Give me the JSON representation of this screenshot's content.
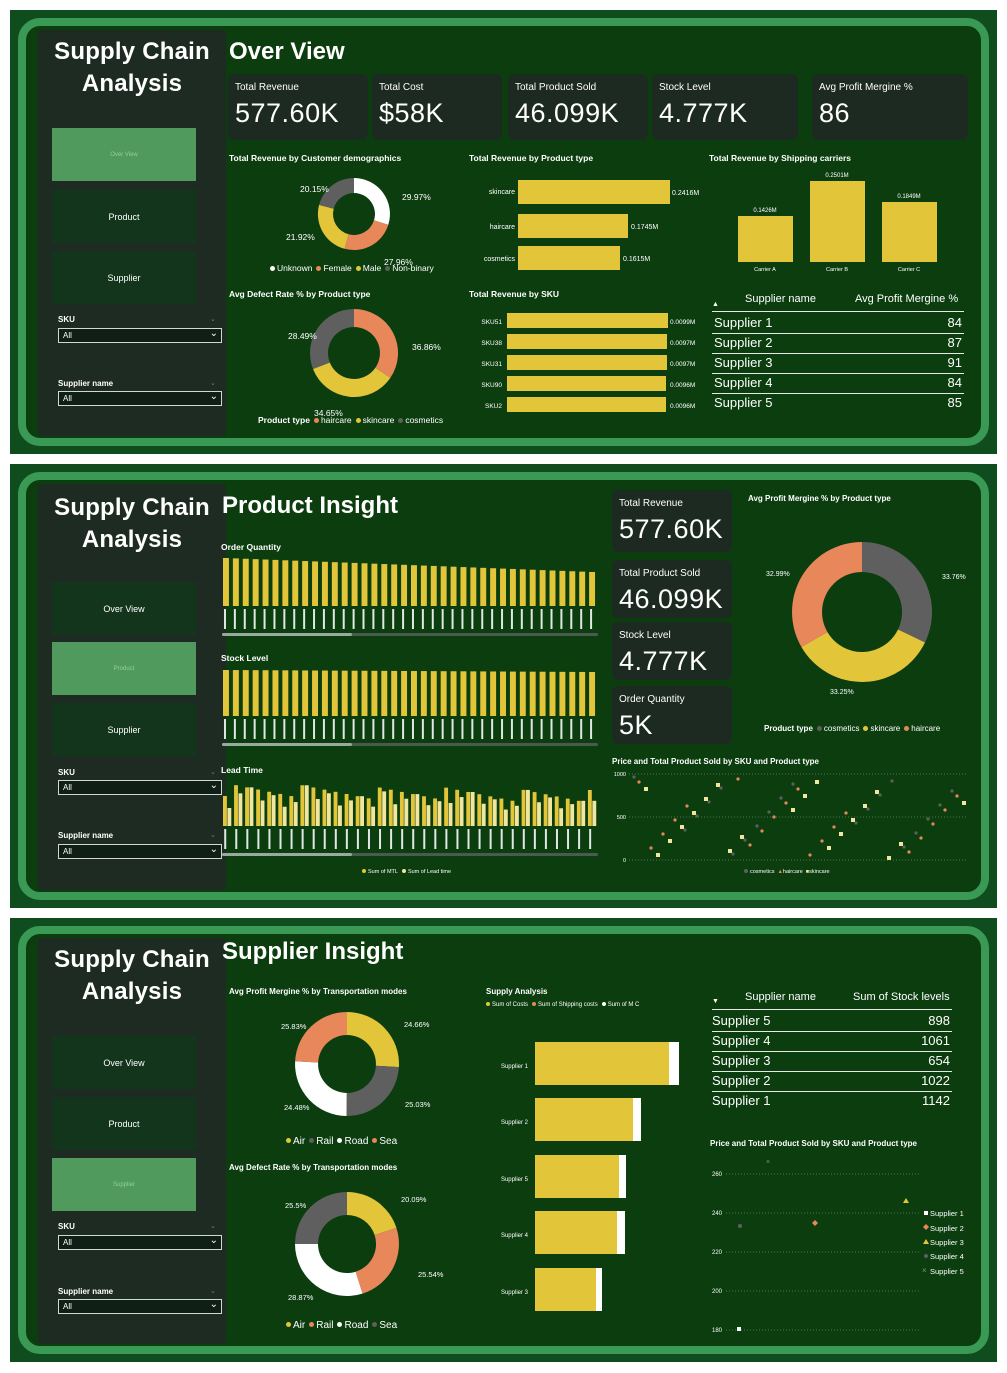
{
  "brand": {
    "line1": "Supply Chain",
    "line2": "Analysis"
  },
  "nav": {
    "overview": "Over View",
    "product": "Product",
    "supplier": "Supplier"
  },
  "slicers": {
    "sku_label": "SKU",
    "sku_value": "All",
    "supplier_label": "Supplier name",
    "supplier_value": "All"
  },
  "colors": {
    "yellow": "#e3c53a",
    "orange": "#e8875a",
    "gray": "#5f5f5f",
    "white": "#ffffff",
    "bg": "#0c3d0f",
    "frame": "#3a9a55",
    "active_nav": "#4f9a5c"
  },
  "overview": {
    "title": "Over View",
    "kpis": [
      {
        "label": "Total Revenue",
        "value": "577.60K"
      },
      {
        "label": "Total Cost",
        "value": "$58K"
      },
      {
        "label": "Total Product Sold",
        "value": "46.099K"
      },
      {
        "label": "Stock Level",
        "value": "4.777K"
      },
      {
        "label": "Avg Profit Mergine %",
        "value": "86"
      }
    ],
    "demo_title": "Total Revenue by Customer demographics",
    "demo_legend": [
      "Unknown",
      "Female",
      "Male",
      "Non-binary"
    ],
    "demo_labels": [
      "20.15%",
      "29.97%",
      "21.92%",
      "27.96%"
    ],
    "ptype_title": "Total Revenue by Product type",
    "ptype_bars": [
      {
        "label": "skincare",
        "value": "0.2416M"
      },
      {
        "label": "haircare",
        "value": "0.1745M"
      },
      {
        "label": "cosmetics",
        "value": "0.1615M"
      }
    ],
    "carrier_title": "Total Revenue by Shipping carriers",
    "carrier_bars": [
      {
        "label": "Carrier A",
        "value": "0.1426M"
      },
      {
        "label": "Carrier B",
        "value": "0.2501M"
      },
      {
        "label": "Carrier C",
        "value": "0.1849M"
      }
    ],
    "defect_title": "Avg Defect Rate % by Product type",
    "defect_labels": [
      "28.49%",
      "36.86%",
      "34.65%"
    ],
    "defect_legend_title": "Product type",
    "defect_legend": [
      "haircare",
      "skincare",
      "cosmetics"
    ],
    "sku_title": "Total Revenue by SKU",
    "sku_bars": [
      {
        "label": "SKU51",
        "value": "0.0099M"
      },
      {
        "label": "SKU38",
        "value": "0.0097M"
      },
      {
        "label": "SKU31",
        "value": "0.0097M"
      },
      {
        "label": "SKU90",
        "value": "0.0096M"
      },
      {
        "label": "SKU2",
        "value": "0.0096M"
      }
    ],
    "table": {
      "col1": "Supplier name",
      "col2": "Avg Profit Mergine %",
      "rows": [
        {
          "name": "Supplier 1",
          "v": "84"
        },
        {
          "name": "Supplier 2",
          "v": "87"
        },
        {
          "name": "Supplier 3",
          "v": "91"
        },
        {
          "name": "Supplier 4",
          "v": "84"
        },
        {
          "name": "Supplier 5",
          "v": "85"
        }
      ]
    }
  },
  "product": {
    "title": "Product Insight",
    "order_title": "Order Quantity",
    "stock_title": "Stock Level",
    "lead_title": "Lead Time",
    "lead_legend": [
      "Sum of MTL",
      "Sum of Lead time"
    ],
    "kpis": [
      {
        "label": "Total Revenue",
        "value": "577.60K"
      },
      {
        "label": "Total Product Sold",
        "value": "46.099K"
      },
      {
        "label": "Stock Level",
        "value": "4.777K"
      },
      {
        "label": "Order Quantity",
        "value": "5K"
      }
    ],
    "margin_title": "Avg Profit Mergine % by Product type",
    "margin_labels": [
      "32.99%",
      "33.76%",
      "33.25%"
    ],
    "margin_legend_title": "Product type",
    "margin_legend": [
      "cosmetics",
      "skincare",
      "haircare"
    ],
    "scatter_title": "Price and Total Product Sold by SKU and Product type",
    "scatter_ticks": [
      "1000",
      "500",
      "0"
    ],
    "scatter_legend": [
      "cosmetics",
      "haircare",
      "skincare"
    ]
  },
  "supplier": {
    "title": "Supplier Insight",
    "transport_title": "Avg Profit Mergine % by Transportation modes",
    "transport_labels": [
      "25.83%",
      "24.66%",
      "24.48%",
      "25.03%"
    ],
    "transport_legend": [
      "Air",
      "Rail",
      "Road",
      "Sea"
    ],
    "defect_title": "Avg Defect Rate % by Transportation modes",
    "defect_labels": [
      "25.5%",
      "20.09%",
      "28.87%",
      "25.54%"
    ],
    "defect_legend": [
      "Air",
      "Rail",
      "Road",
      "Sea"
    ],
    "supply_title": "Supply Analysis",
    "supply_legend": [
      "Sum of Costs",
      "Sum of Shipping costs",
      "Sum of M C"
    ],
    "supply_bars": [
      "Supplier 1",
      "Supplier 2",
      "Supplier 5",
      "Supplier 4",
      "Supplier 3"
    ],
    "table": {
      "col1": "Supplier name",
      "col2": "Sum of Stock levels",
      "rows": [
        {
          "name": "Supplier 5",
          "v": "898"
        },
        {
          "name": "Supplier 4",
          "v": "1061"
        },
        {
          "name": "Supplier 3",
          "v": "654"
        },
        {
          "name": "Supplier 2",
          "v": "1022"
        },
        {
          "name": "Supplier 1",
          "v": "1142"
        }
      ]
    },
    "scatter_title": "Price and Total Product Sold by SKU and Product type",
    "scatter_ticks": [
      "260",
      "240",
      "220",
      "200",
      "180"
    ],
    "scatter_legend": [
      "Supplier 1",
      "Supplier 2",
      "Supplier 3",
      "Supplier 4",
      "Supplier 5"
    ]
  }
}
